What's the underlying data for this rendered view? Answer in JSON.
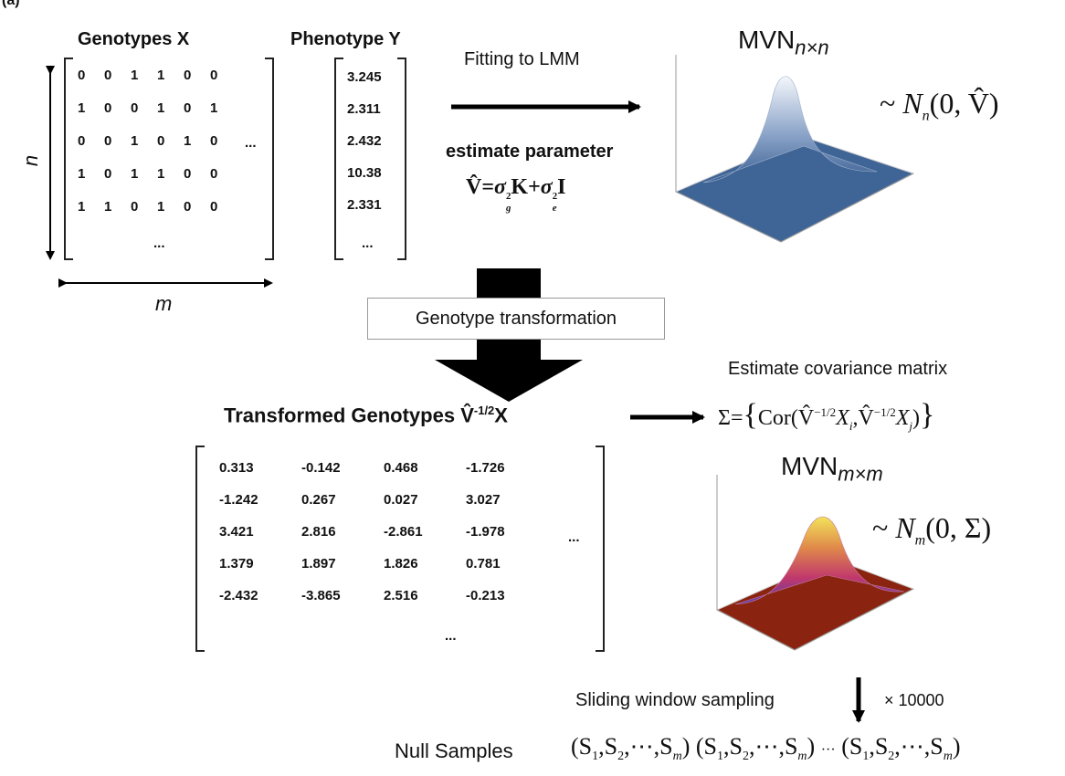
{
  "panel_label": "(a)",
  "genotypes": {
    "title": "Genotypes X",
    "rows": [
      [
        "0",
        "0",
        "1",
        "1",
        "0",
        "0"
      ],
      [
        "1",
        "0",
        "0",
        "1",
        "0",
        "1"
      ],
      [
        "0",
        "0",
        "1",
        "0",
        "1",
        "0"
      ],
      [
        "1",
        "0",
        "1",
        "1",
        "0",
        "0"
      ],
      [
        "1",
        "1",
        "0",
        "1",
        "0",
        "0"
      ]
    ],
    "col_ellipsis": "...",
    "row_ellipsis": "...",
    "n_label": "n",
    "m_label": "m"
  },
  "phenotype": {
    "title": "Phenotype Y",
    "values": [
      "3.245",
      "2.311",
      "2.432",
      "10.38",
      "2.331"
    ],
    "ellipsis": "..."
  },
  "fitting": {
    "label": "Fitting to LMM",
    "estimate_label": "estimate parameter",
    "formula_lhs": "V̂",
    "formula_eq": "=",
    "sigma_g": "σ",
    "sub_g": "g",
    "sup_2a": "2",
    "K": "K",
    "plus": "+",
    "sigma_e": "σ",
    "sub_e": "e",
    "sup_2b": "2",
    "I": "I"
  },
  "mvn1": {
    "title": "MVN",
    "sub": "n×n",
    "dist_tilde": "~",
    "dist_N": "N",
    "dist_sub": "n",
    "dist_args": "(0, V̂)",
    "colors": {
      "top": "#f4f7fb",
      "base": "#3a5f92"
    }
  },
  "transform": {
    "label": "Genotype transformation"
  },
  "transformed": {
    "title": "Transformed Genotypes",
    "title_sym": "V̂",
    "title_sup": "-1/2",
    "title_x": "X",
    "rows": [
      [
        "0.313",
        "-0.142",
        "0.468",
        "-1.726"
      ],
      [
        "-1.242",
        "0.267",
        "0.027",
        "3.027"
      ],
      [
        "3.421",
        "2.816",
        "-2.861",
        "-1.978"
      ],
      [
        "1.379",
        "1.897",
        "1.826",
        "0.781"
      ],
      [
        "-2.432",
        "-3.865",
        "2.516",
        "-0.213"
      ]
    ],
    "col_ellipsis": "...",
    "row_ellipsis": "..."
  },
  "covariance": {
    "label": "Estimate covariance matrix",
    "sigma": "Σ",
    "eq": "=",
    "cor": "Cor(",
    "v1": "V̂",
    "sup1": "−1/2",
    "x1": "X",
    "sub1": "i",
    "comma": ",",
    "v2": "V̂",
    "sup2": "−1/2",
    "x2": "X",
    "sub2": "j",
    "close": ")"
  },
  "mvn2": {
    "title": "MVN",
    "sub": "m×m",
    "dist_tilde": "~",
    "dist_N": "N",
    "dist_sub": "m",
    "dist_args": "(0, Σ)",
    "colors": {
      "peak": "#f2e35a",
      "mid": "#c0376c",
      "base": "#7a1a0c",
      "low": "#3b3bb0"
    }
  },
  "sampling": {
    "label": "Sliding window sampling",
    "multiplier": "× 10000"
  },
  "null_samples": {
    "label": "Null Samples",
    "tuple": [
      "(S",
      "1",
      ",S",
      "2",
      ",⋯,S",
      "m",
      ")"
    ],
    "separator": "···"
  }
}
